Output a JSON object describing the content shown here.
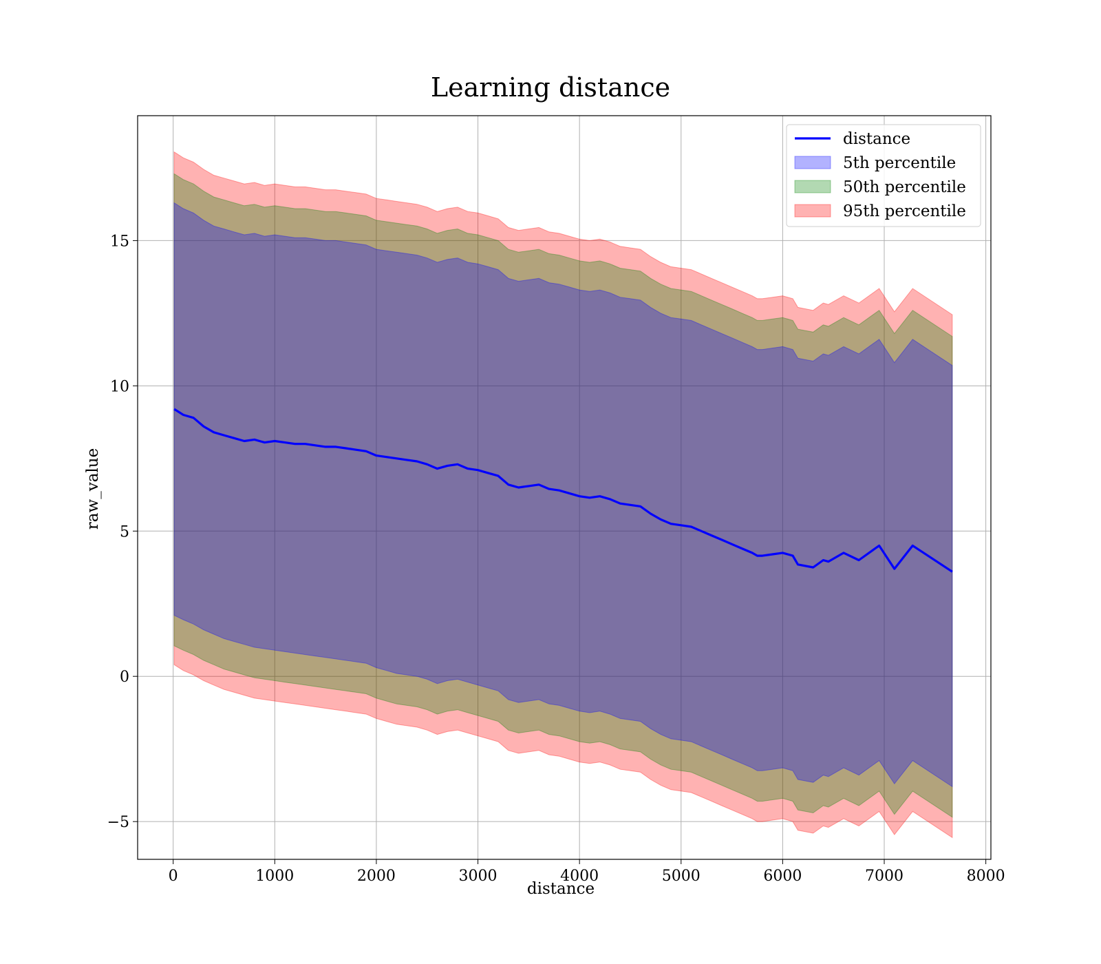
{
  "chart_data": {
    "type": "area",
    "title": "Learning distance",
    "xlabel": "distance",
    "ylabel": "raw_value",
    "xlim": [
      -350,
      8050
    ],
    "ylim": [
      -6.3,
      19.3
    ],
    "x_ticks": [
      0,
      1000,
      2000,
      3000,
      4000,
      5000,
      6000,
      7000,
      8000
    ],
    "x_tick_labels": [
      "0",
      "1000",
      "2000",
      "3000",
      "4000",
      "5000",
      "6000",
      "7000",
      "8000"
    ],
    "y_ticks": [
      -5,
      0,
      5,
      10,
      15
    ],
    "y_tick_labels": [
      "−5",
      "0",
      "5",
      "10",
      "15"
    ],
    "grid": true,
    "legend_position": "top-right",
    "colors": {
      "line": "#0000ff",
      "band_5": "#0000ff",
      "band_50": "#008000",
      "band_95": "#ff0000"
    },
    "x": [
      10,
      100,
      200,
      300,
      400,
      500,
      600,
      700,
      800,
      900,
      1000,
      1100,
      1200,
      1300,
      1400,
      1500,
      1600,
      1700,
      1800,
      1900,
      2000,
      2100,
      2200,
      2300,
      2400,
      2500,
      2600,
      2700,
      2800,
      2900,
      3000,
      3100,
      3200,
      3300,
      3400,
      3500,
      3600,
      3700,
      3800,
      3900,
      4000,
      4100,
      4200,
      4300,
      4400,
      4500,
      4600,
      4700,
      4800,
      4900,
      5000,
      5100,
      5200,
      5300,
      5400,
      5500,
      5600,
      5700,
      5750,
      5800,
      5900,
      6000,
      6100,
      6150,
      6300,
      6400,
      6450,
      6600,
      6750,
      6950,
      7100,
      7280,
      7670
    ],
    "series": [
      {
        "name": "distance",
        "kind": "line",
        "values": [
          9.2,
          9.0,
          8.9,
          8.6,
          8.4,
          8.3,
          8.2,
          8.1,
          8.15,
          8.05,
          8.1,
          8.05,
          8.0,
          8.0,
          7.95,
          7.9,
          7.9,
          7.85,
          7.8,
          7.75,
          7.6,
          7.55,
          7.5,
          7.45,
          7.4,
          7.3,
          7.15,
          7.25,
          7.3,
          7.15,
          7.1,
          7.0,
          6.9,
          6.6,
          6.5,
          6.55,
          6.6,
          6.45,
          6.4,
          6.3,
          6.2,
          6.15,
          6.2,
          6.1,
          5.95,
          5.9,
          5.85,
          5.6,
          5.4,
          5.25,
          5.2,
          5.15,
          5.0,
          4.85,
          4.7,
          4.55,
          4.4,
          4.25,
          4.15,
          4.15,
          4.2,
          4.25,
          4.15,
          3.85,
          3.75,
          4.0,
          3.95,
          4.25,
          4.0,
          4.5,
          3.7,
          4.5,
          3.6
        ]
      },
      {
        "name": "5th percentile",
        "kind": "band",
        "lower": [
          2.1,
          1.95,
          1.8,
          1.6,
          1.45,
          1.3,
          1.2,
          1.1,
          1.0,
          0.95,
          0.9,
          0.85,
          0.8,
          0.75,
          0.7,
          0.65,
          0.6,
          0.55,
          0.5,
          0.45,
          0.3,
          0.2,
          0.1,
          0.05,
          0.0,
          -0.1,
          -0.25,
          -0.15,
          -0.1,
          -0.2,
          -0.3,
          -0.4,
          -0.5,
          -0.8,
          -0.9,
          -0.85,
          -0.8,
          -0.95,
          -1.0,
          -1.1,
          -1.2,
          -1.25,
          -1.2,
          -1.3,
          -1.45,
          -1.5,
          -1.55,
          -1.8,
          -2.0,
          -2.15,
          -2.2,
          -2.25,
          -2.4,
          -2.55,
          -2.7,
          -2.85,
          -3.0,
          -3.15,
          -3.25,
          -3.25,
          -3.2,
          -3.15,
          -3.25,
          -3.55,
          -3.65,
          -3.4,
          -3.45,
          -3.15,
          -3.4,
          -2.9,
          -3.7,
          -2.9,
          -3.8
        ],
        "upper": [
          16.3,
          16.1,
          15.95,
          15.7,
          15.5,
          15.4,
          15.3,
          15.2,
          15.25,
          15.15,
          15.2,
          15.15,
          15.1,
          15.1,
          15.05,
          15.0,
          15.0,
          14.95,
          14.9,
          14.85,
          14.7,
          14.65,
          14.6,
          14.55,
          14.5,
          14.4,
          14.25,
          14.35,
          14.4,
          14.25,
          14.2,
          14.1,
          14.0,
          13.7,
          13.6,
          13.65,
          13.7,
          13.55,
          13.5,
          13.4,
          13.3,
          13.25,
          13.3,
          13.2,
          13.05,
          13.0,
          12.95,
          12.7,
          12.5,
          12.35,
          12.3,
          12.25,
          12.1,
          11.95,
          11.8,
          11.65,
          11.5,
          11.35,
          11.25,
          11.25,
          11.3,
          11.35,
          11.25,
          10.95,
          10.85,
          11.1,
          11.05,
          11.35,
          11.1,
          11.6,
          10.8,
          11.6,
          10.7
        ]
      },
      {
        "name": "50th percentile",
        "kind": "band",
        "lower": [
          1.05,
          0.9,
          0.75,
          0.55,
          0.4,
          0.25,
          0.15,
          0.05,
          -0.05,
          -0.1,
          -0.15,
          -0.2,
          -0.25,
          -0.3,
          -0.35,
          -0.4,
          -0.45,
          -0.5,
          -0.55,
          -0.6,
          -0.75,
          -0.85,
          -0.95,
          -1.0,
          -1.05,
          -1.15,
          -1.3,
          -1.2,
          -1.15,
          -1.25,
          -1.35,
          -1.45,
          -1.55,
          -1.85,
          -1.95,
          -1.9,
          -1.85,
          -2.0,
          -2.05,
          -2.15,
          -2.25,
          -2.3,
          -2.25,
          -2.35,
          -2.5,
          -2.55,
          -2.6,
          -2.85,
          -3.05,
          -3.2,
          -3.25,
          -3.3,
          -3.45,
          -3.6,
          -3.75,
          -3.9,
          -4.05,
          -4.2,
          -4.3,
          -4.3,
          -4.25,
          -4.2,
          -4.3,
          -4.6,
          -4.7,
          -4.45,
          -4.5,
          -4.2,
          -4.45,
          -3.95,
          -4.75,
          -3.95,
          -4.85
        ],
        "upper": [
          17.3,
          17.1,
          16.95,
          16.7,
          16.5,
          16.4,
          16.3,
          16.2,
          16.25,
          16.15,
          16.2,
          16.15,
          16.1,
          16.1,
          16.05,
          16.0,
          16.0,
          15.95,
          15.9,
          15.85,
          15.7,
          15.65,
          15.6,
          15.55,
          15.5,
          15.4,
          15.25,
          15.35,
          15.4,
          15.25,
          15.2,
          15.1,
          15.0,
          14.7,
          14.6,
          14.65,
          14.7,
          14.55,
          14.5,
          14.4,
          14.3,
          14.25,
          14.3,
          14.2,
          14.05,
          14.0,
          13.95,
          13.7,
          13.5,
          13.35,
          13.3,
          13.25,
          13.1,
          12.95,
          12.8,
          12.65,
          12.5,
          12.35,
          12.25,
          12.25,
          12.3,
          12.35,
          12.25,
          11.95,
          11.85,
          12.1,
          12.05,
          12.35,
          12.1,
          12.6,
          11.8,
          12.6,
          11.7
        ]
      },
      {
        "name": "95th percentile",
        "kind": "band",
        "lower": [
          0.4,
          0.2,
          0.05,
          -0.15,
          -0.3,
          -0.45,
          -0.55,
          -0.65,
          -0.75,
          -0.8,
          -0.85,
          -0.9,
          -0.95,
          -1.0,
          -1.05,
          -1.1,
          -1.15,
          -1.2,
          -1.25,
          -1.3,
          -1.45,
          -1.55,
          -1.65,
          -1.7,
          -1.75,
          -1.85,
          -2.0,
          -1.9,
          -1.85,
          -1.95,
          -2.05,
          -2.15,
          -2.25,
          -2.55,
          -2.65,
          -2.6,
          -2.55,
          -2.7,
          -2.75,
          -2.85,
          -2.95,
          -3.0,
          -2.95,
          -3.05,
          -3.2,
          -3.25,
          -3.3,
          -3.55,
          -3.75,
          -3.9,
          -3.95,
          -4.0,
          -4.15,
          -4.3,
          -4.45,
          -4.6,
          -4.75,
          -4.9,
          -5.0,
          -5.0,
          -4.95,
          -4.9,
          -5.0,
          -5.3,
          -5.4,
          -5.15,
          -5.2,
          -4.9,
          -5.15,
          -4.65,
          -5.45,
          -4.65,
          -5.55
        ],
        "upper": [
          18.05,
          17.85,
          17.7,
          17.45,
          17.25,
          17.15,
          17.05,
          16.95,
          17.0,
          16.9,
          16.95,
          16.9,
          16.85,
          16.85,
          16.8,
          16.75,
          16.75,
          16.7,
          16.65,
          16.6,
          16.45,
          16.4,
          16.35,
          16.3,
          16.25,
          16.15,
          16.0,
          16.1,
          16.15,
          16.0,
          15.95,
          15.85,
          15.75,
          15.45,
          15.35,
          15.4,
          15.45,
          15.3,
          15.25,
          15.15,
          15.05,
          15.0,
          15.05,
          14.95,
          14.8,
          14.75,
          14.7,
          14.45,
          14.25,
          14.1,
          14.05,
          14.0,
          13.85,
          13.7,
          13.55,
          13.4,
          13.25,
          13.1,
          13.0,
          13.0,
          13.05,
          13.1,
          13.0,
          12.7,
          12.6,
          12.85,
          12.8,
          13.1,
          12.85,
          13.35,
          12.55,
          13.35,
          12.45
        ]
      }
    ]
  }
}
